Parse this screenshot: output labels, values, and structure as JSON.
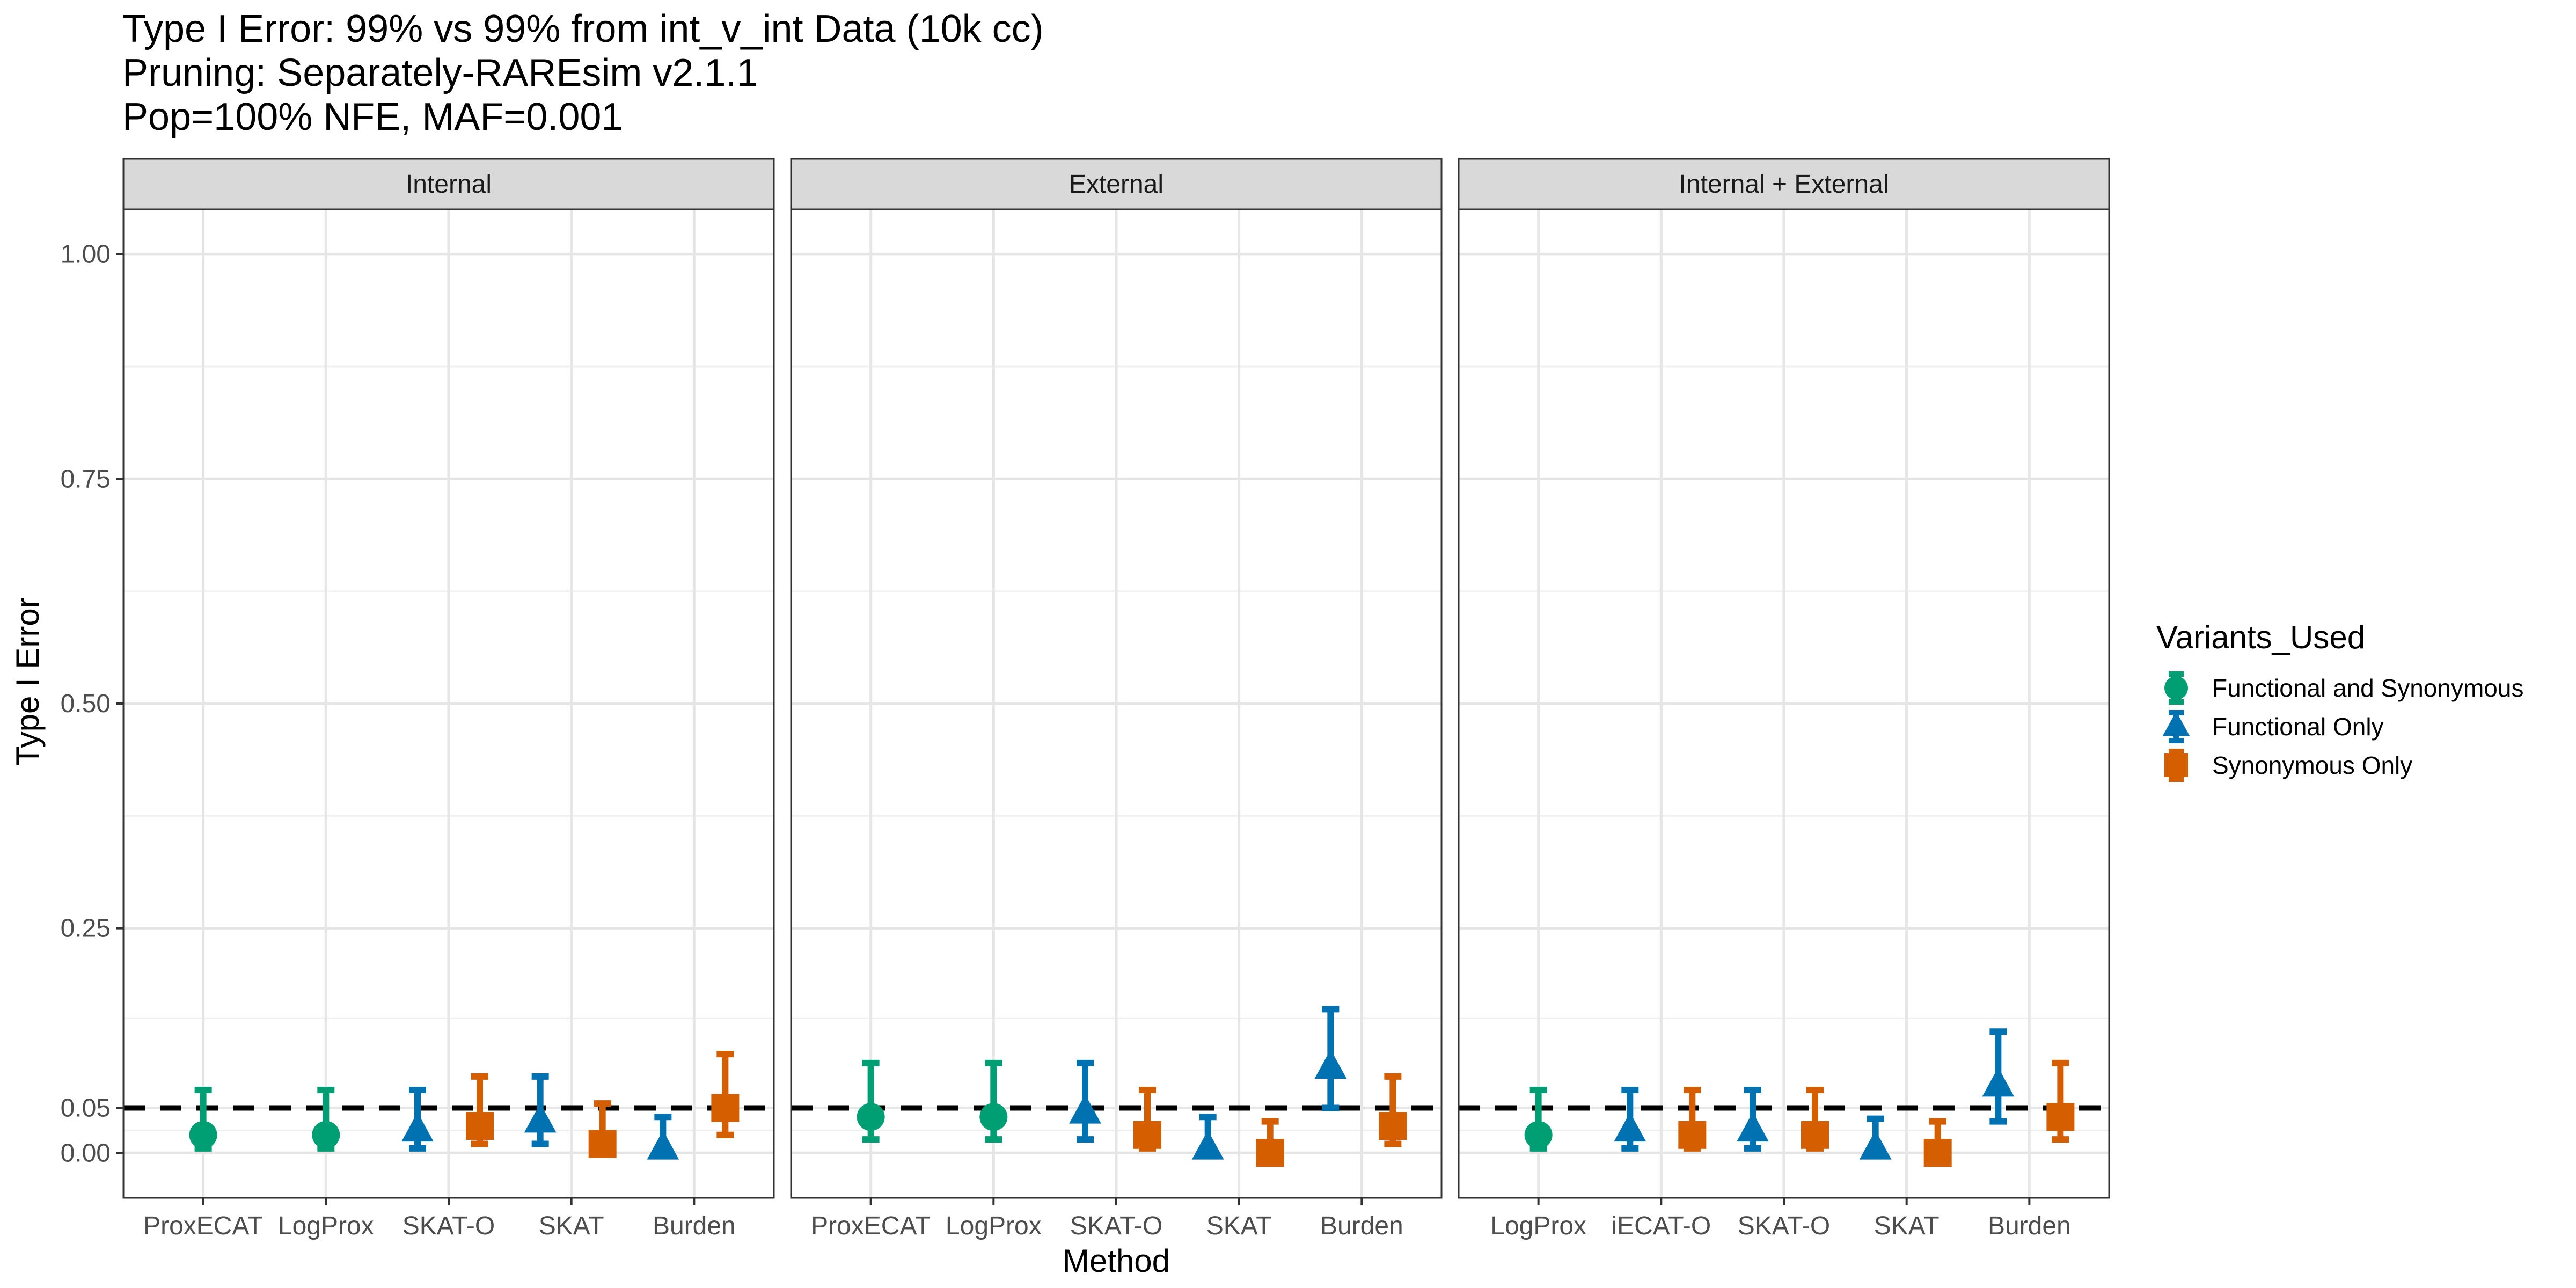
{
  "title_lines": [
    "Type I Error: 99% vs 99% from int_v_int Data (10k cc)",
    "Pruning: Separately-RAREsim v2.1.1",
    "Pop=100% NFE, MAF=0.001"
  ],
  "colors": {
    "Functional and Synonymous": "#009E73",
    "Functional Only": "#0072B2",
    "Synonymous Only": "#D55E00",
    "reference_line": "#000000"
  },
  "chart_data": {
    "type": "scatter",
    "subtype": "point-range with error bars, faceted",
    "xlabel": "Method",
    "ylabel": "Type I Error",
    "ylim": [
      -0.05,
      1.05
    ],
    "yticks": [
      0.0,
      0.05,
      0.25,
      0.5,
      0.75,
      1.0
    ],
    "ytick_labels": [
      "0.00",
      "0.05",
      "0.25",
      "0.50",
      "0.75",
      "1.00"
    ],
    "reference_line": {
      "y": 0.05,
      "style": "dashed"
    },
    "grid": true,
    "legend": {
      "title": "Variants_Used",
      "placement": "right",
      "entries": [
        {
          "name": "Functional and Synonymous",
          "shape": "circle"
        },
        {
          "name": "Functional Only",
          "shape": "triangle"
        },
        {
          "name": "Synonymous Only",
          "shape": "square"
        }
      ]
    },
    "panels": [
      {
        "title": "Internal",
        "categories": [
          "ProxECAT",
          "LogProx",
          "SKAT-O",
          "SKAT",
          "Burden"
        ],
        "points": [
          {
            "category": "ProxECAT",
            "series": "Functional and Synonymous",
            "y": 0.02,
            "lo": 0.005,
            "hi": 0.07
          },
          {
            "category": "LogProx",
            "series": "Functional and Synonymous",
            "y": 0.02,
            "lo": 0.005,
            "hi": 0.07
          },
          {
            "category": "SKAT-O",
            "series": "Functional Only",
            "y": 0.025,
            "lo": 0.005,
            "hi": 0.07
          },
          {
            "category": "SKAT-O",
            "series": "Synonymous Only",
            "y": 0.03,
            "lo": 0.01,
            "hi": 0.085
          },
          {
            "category": "SKAT",
            "series": "Functional Only",
            "y": 0.035,
            "lo": 0.01,
            "hi": 0.085
          },
          {
            "category": "SKAT",
            "series": "Synonymous Only",
            "y": 0.01,
            "lo": 0.0,
            "hi": 0.055
          },
          {
            "category": "Burden",
            "series": "Functional Only",
            "y": 0.005,
            "lo": 0.0,
            "hi": 0.04
          },
          {
            "category": "Burden",
            "series": "Synonymous Only",
            "y": 0.05,
            "lo": 0.02,
            "hi": 0.11
          }
        ]
      },
      {
        "title": "External",
        "categories": [
          "ProxECAT",
          "LogProx",
          "SKAT-O",
          "SKAT",
          "Burden"
        ],
        "points": [
          {
            "category": "ProxECAT",
            "series": "Functional and Synonymous",
            "y": 0.04,
            "lo": 0.015,
            "hi": 0.1
          },
          {
            "category": "LogProx",
            "series": "Functional and Synonymous",
            "y": 0.04,
            "lo": 0.015,
            "hi": 0.1
          },
          {
            "category": "SKAT-O",
            "series": "Functional Only",
            "y": 0.045,
            "lo": 0.015,
            "hi": 0.1
          },
          {
            "category": "SKAT-O",
            "series": "Synonymous Only",
            "y": 0.02,
            "lo": 0.005,
            "hi": 0.07
          },
          {
            "category": "SKAT",
            "series": "Functional Only",
            "y": 0.005,
            "lo": 0.0,
            "hi": 0.04
          },
          {
            "category": "SKAT",
            "series": "Synonymous Only",
            "y": 0.0,
            "lo": 0.0,
            "hi": 0.035
          },
          {
            "category": "Burden",
            "series": "Functional Only",
            "y": 0.095,
            "lo": 0.05,
            "hi": 0.16
          },
          {
            "category": "Burden",
            "series": "Synonymous Only",
            "y": 0.03,
            "lo": 0.01,
            "hi": 0.085
          }
        ]
      },
      {
        "title": "Internal + External",
        "categories": [
          "LogProx",
          "iECAT-O",
          "SKAT-O",
          "SKAT",
          "Burden"
        ],
        "points": [
          {
            "category": "LogProx",
            "series": "Functional and Synonymous",
            "y": 0.02,
            "lo": 0.005,
            "hi": 0.07
          },
          {
            "category": "iECAT-O",
            "series": "Functional Only",
            "y": 0.025,
            "lo": 0.005,
            "hi": 0.07
          },
          {
            "category": "iECAT-O",
            "series": "Synonymous Only",
            "y": 0.02,
            "lo": 0.005,
            "hi": 0.07
          },
          {
            "category": "SKAT-O",
            "series": "Functional Only",
            "y": 0.025,
            "lo": 0.005,
            "hi": 0.07
          },
          {
            "category": "SKAT-O",
            "series": "Synonymous Only",
            "y": 0.02,
            "lo": 0.005,
            "hi": 0.07
          },
          {
            "category": "SKAT",
            "series": "Functional Only",
            "y": 0.005,
            "lo": 0.0,
            "hi": 0.038
          },
          {
            "category": "SKAT",
            "series": "Synonymous Only",
            "y": 0.0,
            "lo": 0.0,
            "hi": 0.035
          },
          {
            "category": "Burden",
            "series": "Functional Only",
            "y": 0.075,
            "lo": 0.035,
            "hi": 0.135
          },
          {
            "category": "Burden",
            "series": "Synonymous Only",
            "y": 0.04,
            "lo": 0.015,
            "hi": 0.1
          }
        ]
      }
    ]
  }
}
